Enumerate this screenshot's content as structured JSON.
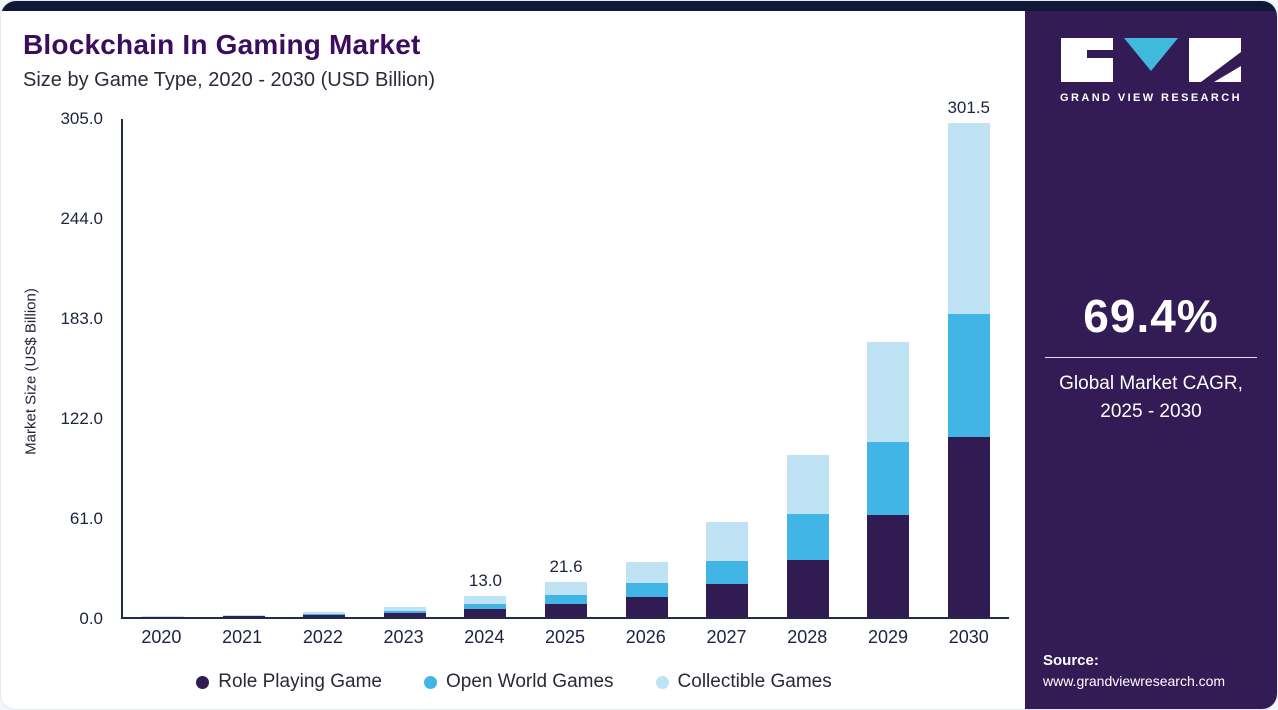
{
  "header": {
    "title": "Blockchain In Gaming Market",
    "subtitle": "Size by Game Type, 2020 - 2030 (USD Billion)"
  },
  "chart_data": {
    "type": "bar",
    "stacked": true,
    "title": "Blockchain In Gaming Market Size by Game Type, 2020 - 2030 (USD Billion)",
    "xlabel": "",
    "ylabel": "Market Size (US$ Billion)",
    "ylim": [
      0,
      305
    ],
    "yticks": [
      "0.0",
      "61.0",
      "122.0",
      "183.0",
      "244.0",
      "305.0"
    ],
    "grid": false,
    "legend_position": "bottom",
    "categories": [
      "2020",
      "2021",
      "2022",
      "2023",
      "2024",
      "2025",
      "2026",
      "2027",
      "2028",
      "2029",
      "2030"
    ],
    "series": [
      {
        "name": "Role Playing Game",
        "color": "#301b52",
        "values": [
          0.15,
          0.45,
          1.0,
          2.3,
          4.8,
          8.0,
          12.4,
          20.0,
          35.0,
          62.0,
          110.0
        ]
      },
      {
        "name": "Open World Games",
        "color": "#41b6e6",
        "values": [
          0.1,
          0.3,
          0.7,
          1.6,
          3.3,
          5.5,
          8.6,
          14.0,
          28.0,
          45.0,
          75.0
        ]
      },
      {
        "name": "Collectible Games",
        "color": "#bfe3f5",
        "values": [
          0.15,
          0.45,
          1.1,
          2.3,
          4.9,
          8.1,
          12.5,
          24.0,
          36.0,
          61.0,
          116.5
        ]
      }
    ],
    "totals": [
      0.4,
      1.2,
      2.8,
      6.2,
      13.0,
      21.6,
      33.5,
      58.0,
      99.0,
      168.0,
      301.5
    ],
    "total_labels": {
      "2024": "13.0",
      "2025": "21.6",
      "2030": "301.5"
    }
  },
  "sidebar": {
    "logo_text": "GRAND VIEW RESEARCH",
    "stat_value": "69.4%",
    "stat_caption_line1": "Global Market CAGR,",
    "stat_caption_line2": "2025 - 2030",
    "source_label": "Source:",
    "source_url": "www.grandviewresearch.com"
  },
  "colors": {
    "accent_strip": "#111737",
    "sidebar_background": "#331b55",
    "title_text": "#3c0d5e",
    "axis": "#222b47",
    "logo_triangle": "#3fb9dc"
  }
}
